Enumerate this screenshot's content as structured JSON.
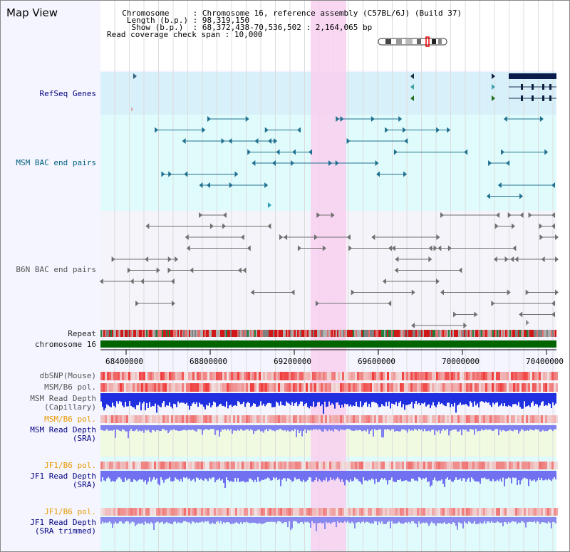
{
  "header": {
    "title": "Map View",
    "info": [
      {
        "key": "  Chromosome     ",
        "val": ": Chromosome 16, reference assembly (C57BL/6J) (Build 37)"
      },
      {
        "key": "   Length (b.p.) ",
        "val": ": 98,319,150"
      },
      {
        "key": "    Show (b.p.)  ",
        "val": ": 68,372,438-70,536,502 : 2,164,065 bp"
      },
      {
        "key": "Read coverage check span ",
        "val": ": 10,000"
      }
    ]
  },
  "tracks": {
    "refseq": "RefSeq Genes",
    "msm_bac": "MSM BAC end pairs",
    "b6n_bac": "B6N BAC end pairs",
    "repeat": "Repeat",
    "chromosome": "chromosome 16",
    "dbsnp": "dbSNP(Mouse)",
    "msm_b6_pol": "MSM/B6 pol.",
    "msm_read_depth_cap_1": "MSM Read Depth",
    "msm_read_depth_cap_2": "(Capillary)",
    "msm_b6_pol_2": "MSM/B6 pol.",
    "msm_read_depth_sra_1": "MSM Read Depth",
    "msm_read_depth_sra_2": "(SRA)",
    "jf1_b6_pol": "JF1/B6 pol.",
    "jf1_read_depth_1": "JF1 Read Depth",
    "jf1_read_depth_2": "(SRA)",
    "jf1_b6_pol_2": "JF1/B6 pol.",
    "jf1_read_depth_trim_1": "JF1 Read Depth",
    "jf1_read_depth_trim_2": "(SRA trimmed)"
  },
  "axis": {
    "ticks": [
      "68400000",
      "68800000",
      "69200000",
      "69600000",
      "70000000",
      "70400000"
    ]
  },
  "colors": {
    "refseq_bg": "#d8f0fa",
    "light_cyan": "#e0fbfb",
    "highlight": "#f8d0f0",
    "chromosome_bar": "#006400",
    "depth_blue": "#2030e0",
    "depth_light": "#7878f0"
  }
}
